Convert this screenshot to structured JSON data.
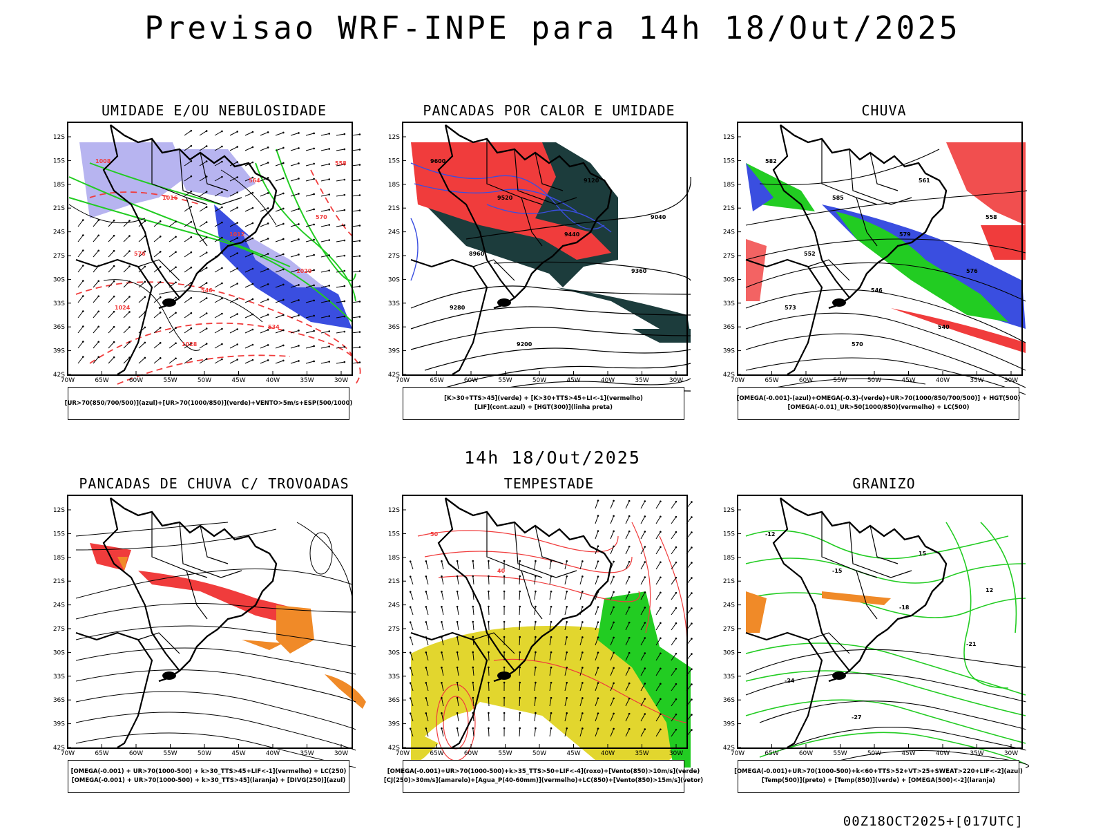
{
  "header": {
    "title": "Previsao WRF-INPE  para 14h 18/Out/2025",
    "mid_title": "14h 18/Out/2025",
    "footer": "00Z18OCT2025+[017UTC]"
  },
  "axes": {
    "lat_labels": [
      "12S",
      "15S",
      "18S",
      "21S",
      "24S",
      "27S",
      "30S",
      "33S",
      "36S",
      "39S",
      "42S"
    ],
    "lon_labels": [
      "70W",
      "65W",
      "60W",
      "55W",
      "50W",
      "45W",
      "40W",
      "35W",
      "30W"
    ]
  },
  "panels": [
    {
      "title": "UMIDADE E/OU NEBULOSIDADE",
      "legend": [
        "[UR>70(850/700/500)](azul)+[UR>70(1000/850)](verde)+VENTO>5m/s+ESP(500/1000)"
      ],
      "contour_labels": [
        "1008",
        "1016",
        "1012",
        "1020",
        "1024",
        "1028",
        "564",
        "570",
        "576",
        "546",
        "534",
        "558"
      ]
    },
    {
      "title": "PANCADAS POR CALOR E UMIDADE",
      "legend": [
        "[K>30+TTS>45](verde) + [K>30+TTS>45+LI<-1](vermelho)",
        "[LIF](cont.azul) + [HGT(300)](linha preta)"
      ],
      "contour_labels": [
        "9600",
        "9520",
        "9440",
        "9360",
        "9280",
        "9200",
        "9120",
        "9040",
        "8960"
      ]
    },
    {
      "title": "CHUVA",
      "legend": [
        "[OMEGA(-0.001)-(azul)+OMEGA(-0.3)-(verde)+UR>70(1000/850/700/500)] + HGT(500)",
        "[OMEGA(-0.01)_UR>50(1000/850)(vermelho) + LC(500)"
      ],
      "contour_labels": [
        "582",
        "585",
        "579",
        "576",
        "573",
        "570",
        "561",
        "558",
        "552",
        "546",
        "540"
      ]
    },
    {
      "title": "PANCADAS DE CHUVA C/ TROVOADAS",
      "legend": [
        "[OMEGA(-0.001) + UR>70(1000-500) + k>30_TTS>45+LIF<-1](vermelho) + LC(250)",
        "[OMEGA(-0.001) + UR>70(1000-500) + k>30_TTS>45](laranja) + [DIVG(250)](azul)"
      ],
      "contour_labels": []
    },
    {
      "title": "TEMPESTADE",
      "legend": [
        "[OMEGA(-0.001)+UR>70(1000-500)+k>35_TTS>50+LIF<-4](roxo)+[Vento(850)>10m/s](verde)",
        "[CJ(250)>30m/s](amarelo)+[Agua_P(40-60mm)](vermelho)+LC(850)+[Vento(850)>15m/s](vetor)"
      ],
      "contour_labels": [
        "50",
        "40"
      ]
    },
    {
      "title": "GRANIZO",
      "legend": [
        "[OMEGA(-0.001)+UR>70(1000-500)+k<60+TTS>52+VT>25+SWEAT>220+LIF<-2](azul)",
        "[Temp(500)](preto) + [Temp(850)](verde) + [OMEGA(500)<-2](laranja)"
      ],
      "contour_labels": [
        "-12",
        "-15",
        "-18",
        "-21",
        "-24",
        "-27",
        "15",
        "12"
      ]
    }
  ],
  "colors": {
    "blue": "#3a4ee0",
    "lavender": "#b7b4f0",
    "green": "#22cc22",
    "red": "#f03c3c",
    "dark_teal": "#1c3c3c",
    "orange": "#f08a28",
    "yellow": "#e2d62e"
  }
}
